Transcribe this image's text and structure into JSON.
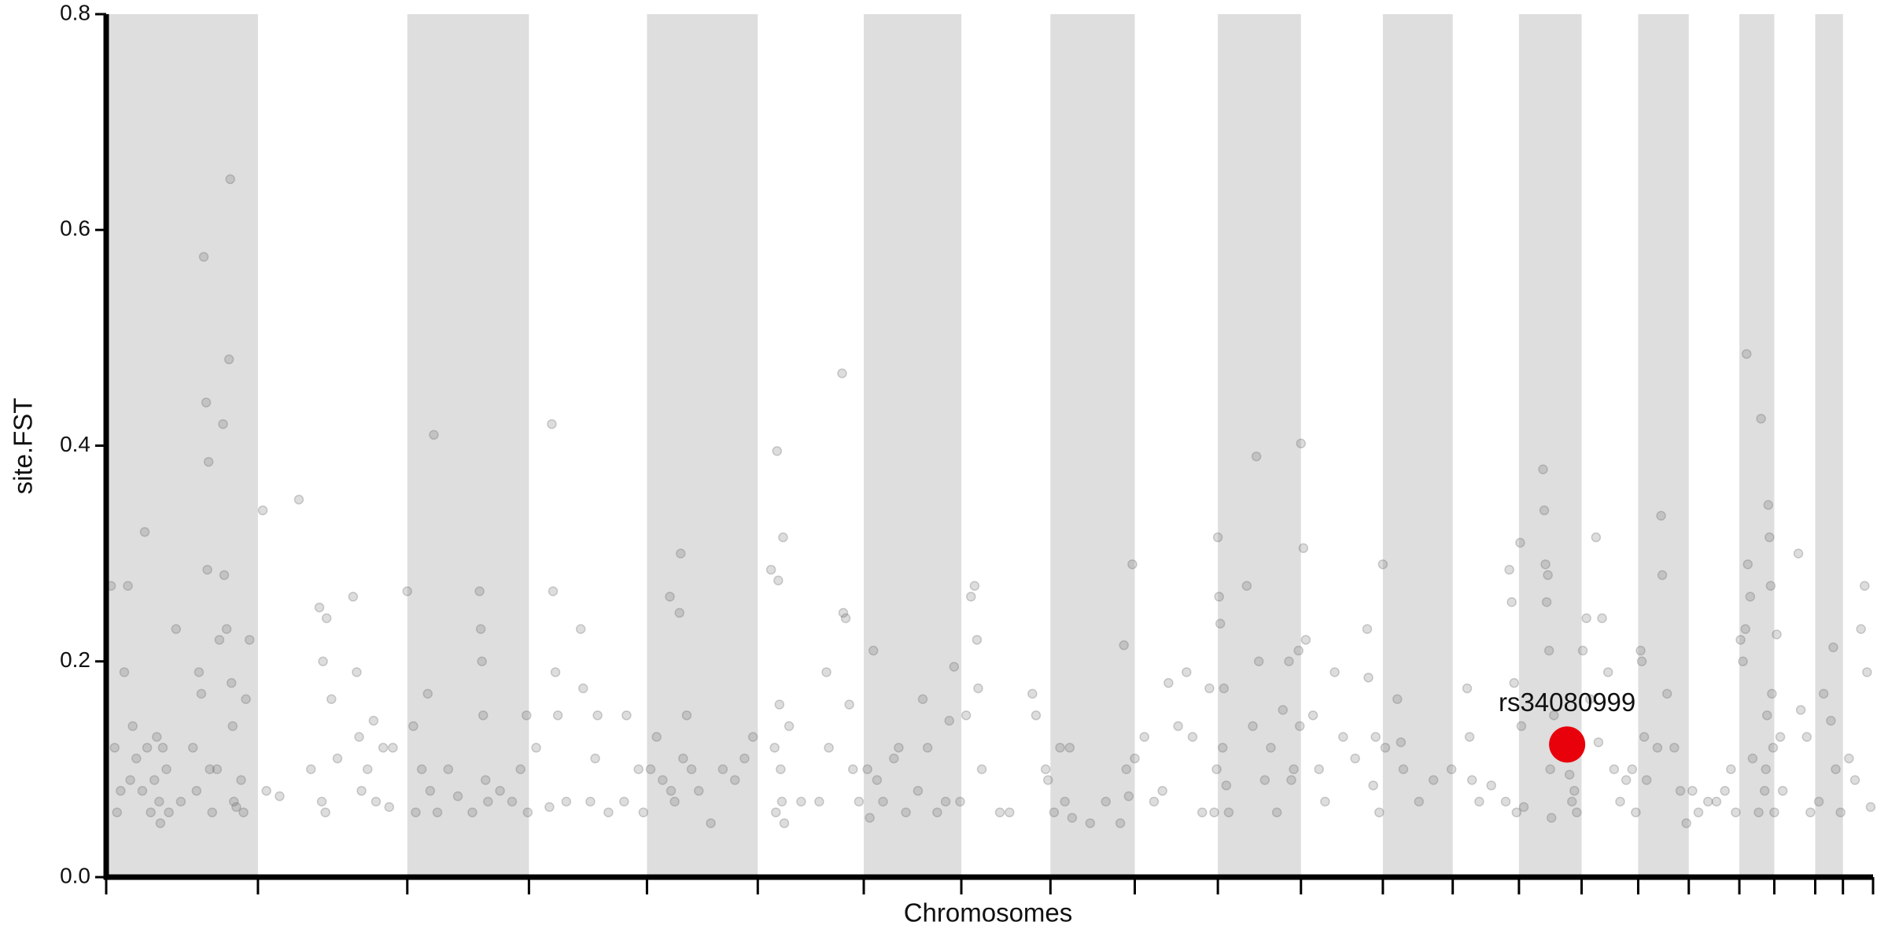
{
  "chart_data": {
    "type": "scatter",
    "x_label": "Chromosomes",
    "y_label": "site.FST",
    "xlim": [
      88,
      1555
    ],
    "ylim": [
      0,
      0.8
    ],
    "yticks": [
      {
        "value": 0,
        "label": "0.0"
      },
      0.2,
      0.4,
      0.6,
      0.8
    ],
    "chromosome_boundaries": [
      88,
      214,
      338,
      439,
      537,
      629,
      717,
      798,
      872,
      942,
      1011,
      1080,
      1148,
      1206,
      1261,
      1313,
      1360,
      1402,
      1444,
      1473,
      1507,
      1530,
      1555
    ],
    "band_color": "#dedede",
    "series": [
      {
        "color": "#666666",
        "x": [
          92,
          95,
          97,
          100,
          103,
          106,
          108,
          110,
          113,
          118,
          120,
          122,
          125,
          128,
          130,
          132,
          133,
          135,
          138,
          140,
          146,
          150,
          160,
          163,
          165,
          167,
          169,
          171,
          172,
          173,
          174,
          176,
          180,
          182,
          185,
          186,
          188,
          190,
          191,
          192,
          193,
          194,
          196,
          200,
          204,
          207,
          202,
          218,
          221,
          232,
          248,
          258,
          265,
          267,
          268,
          270,
          271,
          275,
          280,
          293,
          296,
          298,
          300,
          305,
          310,
          312,
          318,
          323,
          326,
          338,
          343,
          345,
          350,
          355,
          357,
          360,
          363,
          372,
          380,
          392,
          398,
          399,
          400,
          401,
          403,
          405,
          415,
          425,
          432,
          437,
          438,
          445,
          456,
          458,
          459,
          461,
          463,
          470,
          482,
          484,
          490,
          494,
          496,
          505,
          518,
          520,
          530,
          534,
          540,
          545,
          550,
          556,
          557,
          560,
          564,
          565,
          567,
          570,
          574,
          580,
          590,
          600,
          610,
          618,
          625,
          640,
          643,
          644,
          645,
          646,
          647,
          648,
          649,
          650,
          651,
          655,
          665,
          680,
          686,
          688,
          699,
          700,
          702,
          705,
          708,
          713,
          720,
          722,
          725,
          728,
          733,
          742,
          746,
          752,
          762,
          766,
          770,
          778,
          785,
          788,
          792,
          797,
          802,
          806,
          809,
          811,
          812,
          815,
          830,
          838,
          857,
          860,
          868,
          870,
          875,
          880,
          884,
          888,
          890,
          905,
          918,
          930,
          933,
          935,
          937,
          940,
          942,
          950,
          958,
          965,
          970,
          978,
          985,
          990,
          998,
          1004,
          1008,
          1010,
          1011,
          1012,
          1013,
          1015,
          1016,
          1018,
          1020,
          1035,
          1040,
          1043,
          1045,
          1050,
          1055,
          1060,
          1065,
          1070,
          1072,
          1074,
          1078,
          1079,
          1080,
          1082,
          1084,
          1090,
          1095,
          1100,
          1108,
          1115,
          1125,
          1135,
          1136,
          1140,
          1142,
          1145,
          1148,
          1150,
          1160,
          1163,
          1165,
          1178,
          1190,
          1205,
          1218,
          1220,
          1222,
          1228,
          1238,
          1250,
          1253,
          1255,
          1257,
          1259,
          1262,
          1263,
          1265,
          1281,
          1282,
          1283,
          1284,
          1285,
          1286,
          1287,
          1288,
          1290,
          1303,
          1305,
          1307,
          1309,
          1314,
          1317,
          1320,
          1325,
          1327,
          1330,
          1335,
          1340,
          1345,
          1350,
          1355,
          1358,
          1362,
          1363,
          1365,
          1367,
          1376,
          1379,
          1380,
          1384,
          1390,
          1395,
          1400,
          1405,
          1410,
          1418,
          1425,
          1432,
          1437,
          1441,
          1445,
          1447,
          1449,
          1450,
          1451,
          1453,
          1455,
          1460,
          1462,
          1465,
          1466,
          1467,
          1468,
          1469,
          1470,
          1471,
          1472,
          1473,
          1475,
          1478,
          1480,
          1493,
          1495,
          1500,
          1503,
          1510,
          1514,
          1520,
          1522,
          1524,
          1528,
          1535,
          1540,
          1545,
          1548,
          1550,
          1553
        ],
        "values": [
          0.27,
          0.12,
          0.06,
          0.08,
          0.19,
          0.27,
          0.09,
          0.14,
          0.11,
          0.08,
          0.32,
          0.12,
          0.06,
          0.09,
          0.13,
          0.07,
          0.05,
          0.12,
          0.1,
          0.06,
          0.23,
          0.07,
          0.12,
          0.08,
          0.19,
          0.17,
          0.575,
          0.44,
          0.285,
          0.385,
          0.1,
          0.06,
          0.1,
          0.22,
          0.42,
          0.28,
          0.23,
          0.48,
          0.647,
          0.18,
          0.14,
          0.07,
          0.065,
          0.09,
          0.165,
          0.22,
          0.06,
          0.34,
          0.08,
          0.075,
          0.35,
          0.1,
          0.25,
          0.07,
          0.2,
          0.06,
          0.24,
          0.165,
          0.11,
          0.26,
          0.19,
          0.13,
          0.08,
          0.1,
          0.145,
          0.07,
          0.12,
          0.065,
          0.12,
          0.265,
          0.14,
          0.06,
          0.1,
          0.17,
          0.08,
          0.41,
          0.06,
          0.1,
          0.075,
          0.06,
          0.265,
          0.23,
          0.2,
          0.15,
          0.09,
          0.07,
          0.08,
          0.07,
          0.1,
          0.15,
          0.06,
          0.12,
          0.065,
          0.42,
          0.265,
          0.19,
          0.15,
          0.07,
          0.23,
          0.175,
          0.07,
          0.11,
          0.15,
          0.06,
          0.07,
          0.15,
          0.1,
          0.06,
          0.1,
          0.13,
          0.09,
          0.26,
          0.08,
          0.07,
          0.245,
          0.3,
          0.11,
          0.15,
          0.1,
          0.08,
          0.05,
          0.1,
          0.09,
          0.11,
          0.13,
          0.285,
          0.12,
          0.06,
          0.395,
          0.275,
          0.16,
          0.1,
          0.07,
          0.315,
          0.05,
          0.14,
          0.07,
          0.07,
          0.19,
          0.12,
          0.467,
          0.245,
          0.24,
          0.16,
          0.1,
          0.07,
          0.1,
          0.055,
          0.21,
          0.09,
          0.07,
          0.11,
          0.12,
          0.06,
          0.08,
          0.165,
          0.12,
          0.06,
          0.07,
          0.145,
          0.195,
          0.07,
          0.15,
          0.26,
          0.27,
          0.22,
          0.175,
          0.1,
          0.06,
          0.06,
          0.17,
          0.15,
          0.1,
          0.09,
          0.06,
          0.12,
          0.07,
          0.12,
          0.055,
          0.05,
          0.07,
          0.05,
          0.215,
          0.1,
          0.075,
          0.29,
          0.11,
          0.13,
          0.07,
          0.08,
          0.18,
          0.14,
          0.19,
          0.13,
          0.06,
          0.175,
          0.06,
          0.1,
          0.315,
          0.26,
          0.235,
          0.12,
          0.175,
          0.085,
          0.06,
          0.27,
          0.14,
          0.39,
          0.2,
          0.09,
          0.12,
          0.06,
          0.155,
          0.2,
          0.09,
          0.1,
          0.21,
          0.14,
          0.402,
          0.305,
          0.22,
          0.15,
          0.1,
          0.07,
          0.19,
          0.13,
          0.11,
          0.23,
          0.185,
          0.085,
          0.13,
          0.06,
          0.29,
          0.12,
          0.165,
          0.125,
          0.1,
          0.07,
          0.09,
          0.1,
          0.175,
          0.13,
          0.09,
          0.07,
          0.085,
          0.07,
          0.285,
          0.255,
          0.18,
          0.06,
          0.31,
          0.14,
          0.065,
          0.378,
          0.34,
          0.29,
          0.255,
          0.28,
          0.21,
          0.1,
          0.055,
          0.15,
          0.095,
          0.07,
          0.08,
          0.06,
          0.21,
          0.24,
          0.165,
          0.315,
          0.125,
          0.24,
          0.19,
          0.1,
          0.07,
          0.09,
          0.1,
          0.06,
          0.21,
          0.2,
          0.13,
          0.09,
          0.12,
          0.335,
          0.28,
          0.17,
          0.12,
          0.08,
          0.05,
          0.08,
          0.06,
          0.07,
          0.07,
          0.08,
          0.1,
          0.06,
          0.22,
          0.2,
          0.23,
          0.485,
          0.29,
          0.26,
          0.11,
          0.06,
          0.425,
          0.08,
          0.1,
          0.15,
          0.345,
          0.315,
          0.27,
          0.17,
          0.12,
          0.06,
          0.225,
          0.13,
          0.08,
          0.3,
          0.155,
          0.13,
          0.06,
          0.07,
          0.17,
          0.145,
          0.213,
          0.1,
          0.06,
          0.11,
          0.09,
          0.23,
          0.27,
          0.19,
          0.065
        ]
      }
    ],
    "highlight": {
      "label": "rs34080999",
      "x": 1301,
      "value": 0.123,
      "color": "#e8000b"
    }
  }
}
